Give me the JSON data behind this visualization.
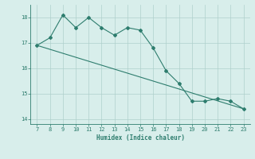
{
  "xlabel": "Humidex (Indice chaleur)",
  "x_data": [
    7,
    8,
    9,
    10,
    11,
    12,
    13,
    14,
    15,
    16,
    17,
    18,
    19,
    20,
    21,
    22,
    23
  ],
  "y_curve": [
    16.9,
    17.2,
    18.1,
    17.6,
    18.0,
    17.6,
    17.3,
    17.6,
    17.5,
    16.8,
    15.9,
    15.4,
    14.7,
    14.7,
    14.8,
    14.7,
    14.4
  ],
  "y_line_start": 16.9,
  "y_line_end": 14.4,
  "line_color": "#2e7d6e",
  "bg_color": "#d8eeeb",
  "grid_color": "#afd0cc",
  "ylim": [
    13.8,
    18.5
  ],
  "xlim": [
    6.5,
    23.5
  ],
  "yticks": [
    14,
    15,
    16,
    17,
    18
  ],
  "xticks": [
    7,
    8,
    9,
    10,
    11,
    12,
    13,
    14,
    15,
    16,
    17,
    18,
    19,
    20,
    21,
    22,
    23
  ]
}
